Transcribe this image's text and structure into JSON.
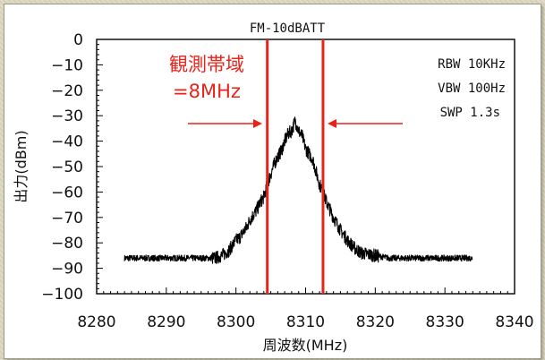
{
  "chart_data": {
    "type": "line",
    "title": "FM-10dBATT",
    "xlabel": "周波数(MHz)",
    "ylabel": "出力(dBm)",
    "xlim": [
      8280,
      8340
    ],
    "ylim": [
      -100,
      0
    ],
    "x_ticks": [
      8280,
      8290,
      8300,
      8310,
      8320,
      8330,
      8340
    ],
    "x_tick_labels": [
      "8280",
      "8290",
      "8300",
      "8310",
      "8320",
      "8330",
      "8340"
    ],
    "y_ticks": [
      0,
      -10,
      -20,
      -30,
      -40,
      -50,
      -60,
      -70,
      -80,
      -90,
      -100
    ],
    "y_tick_labels": [
      "0",
      "−10",
      "−20",
      "−30",
      "−40",
      "−50",
      "−60",
      "−70",
      "−80",
      "−90",
      "−100"
    ],
    "grid": false,
    "settings": [
      "RBW 10KHz",
      "VBW 100Hz",
      "SWP 1.3s"
    ],
    "band_label": [
      "観測帯域",
      "=8MHz"
    ],
    "band_edges": [
      8304.5,
      8312.5
    ],
    "series": [
      {
        "color": "#000000",
        "x": [
          8284,
          8290,
          8295,
          8297,
          8298,
          8299,
          8299.5,
          8300,
          8300.5,
          8301,
          8301.5,
          8302,
          8302.5,
          8303,
          8303.5,
          8304,
          8304.5,
          8305,
          8305.5,
          8306,
          8306.5,
          8307,
          8307.5,
          8308,
          8308.5,
          8309,
          8309.5,
          8310,
          8310.5,
          8311,
          8311.5,
          8312,
          8312.5,
          8313,
          8313.5,
          8314,
          8315,
          8316,
          8317,
          8318,
          8320,
          8322,
          8325,
          8330,
          8334
        ],
        "y": [
          -86,
          -86,
          -86,
          -86,
          -85,
          -83,
          -81,
          -79,
          -78,
          -76,
          -74,
          -71,
          -69,
          -67,
          -64,
          -62,
          -57,
          -53,
          -49,
          -46,
          -44,
          -40,
          -37,
          -36,
          -32,
          -36,
          -38,
          -43,
          -45,
          -47,
          -52,
          -57,
          -60,
          -64,
          -67,
          -70,
          -75,
          -79,
          -82,
          -84,
          -85,
          -86,
          -86,
          -86,
          -86
        ]
      }
    ]
  }
}
